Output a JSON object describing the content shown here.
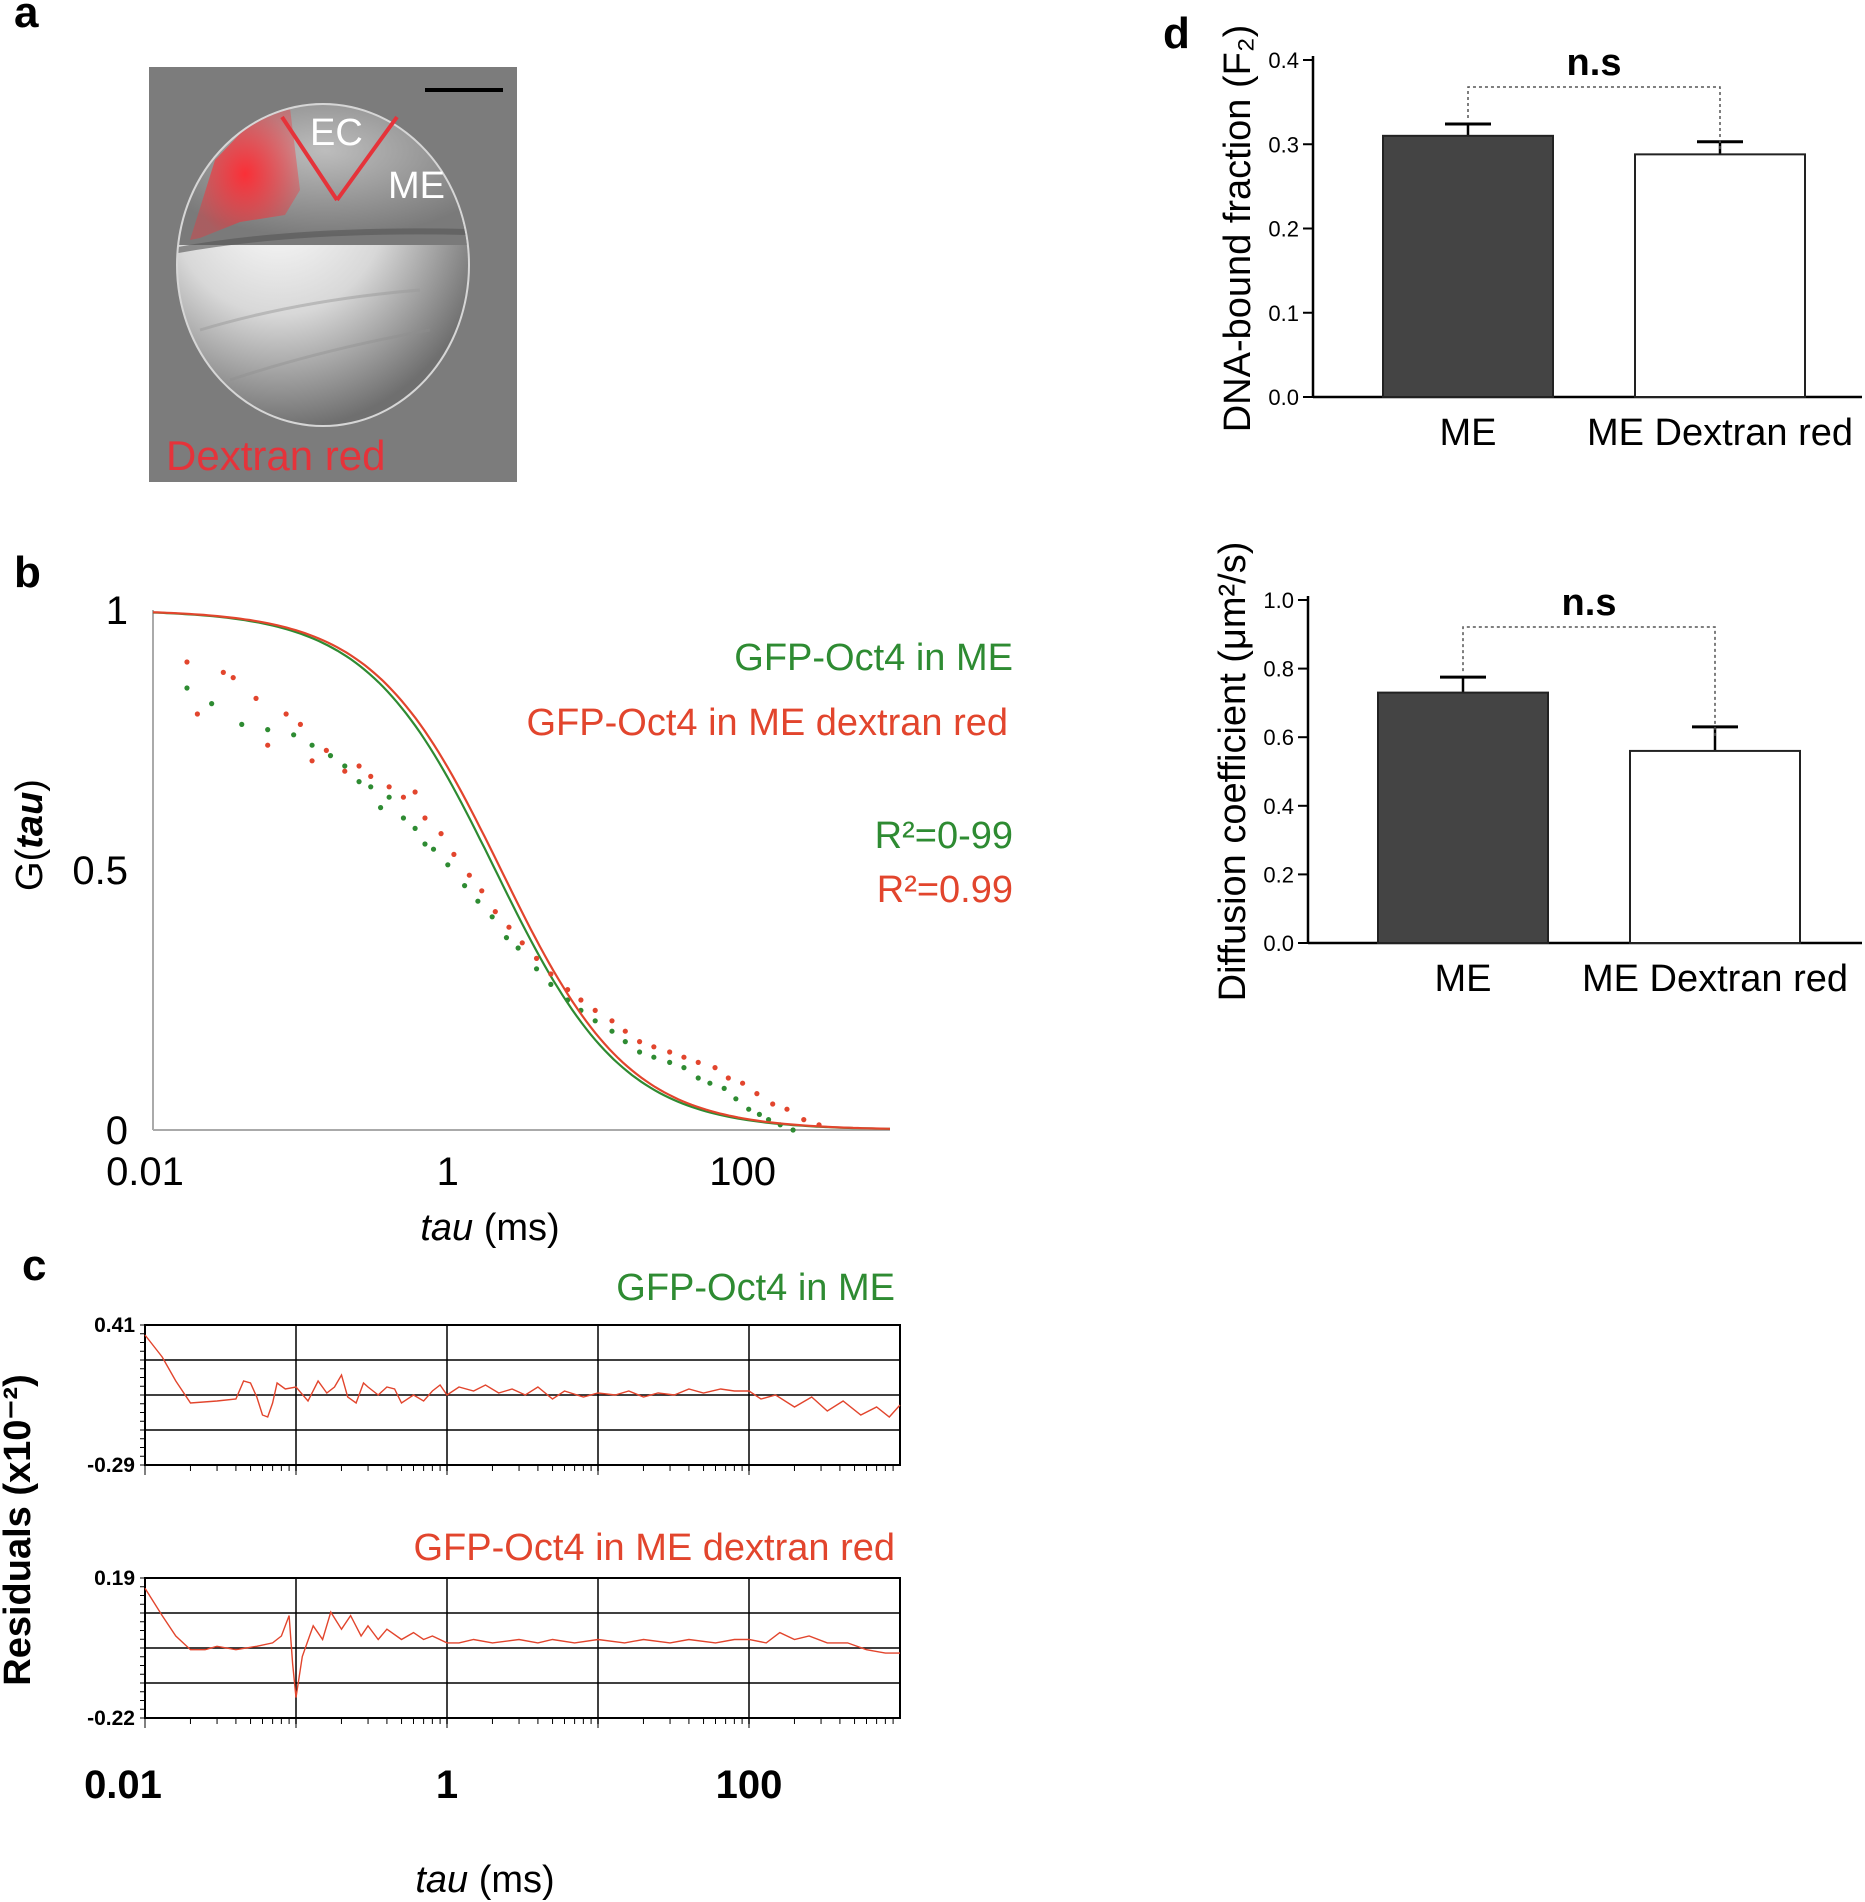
{
  "colors": {
    "green": "#2e8b32",
    "red": "#e2452d",
    "bar_dark": "#444444",
    "bar_light": "#ffffff",
    "image_red": "#e5333a"
  },
  "panel_a": {
    "letter": "a",
    "labels": {
      "ec": "EC",
      "me": "ME",
      "stain": "Dextran red"
    }
  },
  "panel_b": {
    "letter": "b",
    "legend": {
      "green_label": "GFP-Oct4 in ME",
      "red_label": "GFP-Oct4 in ME dextran red",
      "green_r2": "R²=0-99",
      "red_r2": "R²=0.99"
    }
  },
  "panel_c": {
    "letter": "c",
    "ylabel": "Residuals (x10⁻²)"
  },
  "panel_d": {
    "letter": "d"
  },
  "chart_data": [
    {
      "id": "b",
      "type": "line",
      "xlabel_italic": "tau",
      "xlabel_unit": " (ms)",
      "ylabel_prefix": "G(",
      "ylabel_italic": "tau",
      "ylabel_suffix": ")",
      "x_scale": "log",
      "xlim": [
        0.01,
        1000
      ],
      "ylim": [
        0,
        1
      ],
      "x_ticks": [
        {
          "label": "0.01",
          "value": 0.01
        },
        {
          "label": "1",
          "value": 1
        },
        {
          "label": "100",
          "value": 100
        }
      ],
      "y_ticks": [
        {
          "label": "0",
          "value": 0
        },
        {
          "label": "0.5",
          "value": 0.5
        },
        {
          "label": "1",
          "value": 1
        }
      ],
      "series": [
        {
          "name": "GFP-Oct4 in ME",
          "color": "green",
          "fit": {
            "tauD": 2.1
          },
          "points": [
            [
              0.017,
              0.85
            ],
            [
              0.025,
              0.82
            ],
            [
              0.04,
              0.78
            ],
            [
              0.06,
              0.77
            ],
            [
              0.09,
              0.76
            ],
            [
              0.12,
              0.74
            ],
            [
              0.16,
              0.72
            ],
            [
              0.2,
              0.7
            ],
            [
              0.25,
              0.67
            ],
            [
              0.3,
              0.66
            ],
            [
              0.35,
              0.62
            ],
            [
              0.4,
              0.64
            ],
            [
              0.5,
              0.6
            ],
            [
              0.6,
              0.58
            ],
            [
              0.7,
              0.55
            ],
            [
              0.8,
              0.54
            ],
            [
              1.0,
              0.51
            ],
            [
              1.3,
              0.47
            ],
            [
              1.6,
              0.44
            ],
            [
              2.0,
              0.41
            ],
            [
              2.5,
              0.37
            ],
            [
              3.0,
              0.35
            ],
            [
              4.0,
              0.31
            ],
            [
              5.0,
              0.28
            ],
            [
              6.5,
              0.25
            ],
            [
              8,
              0.23
            ],
            [
              10,
              0.21
            ],
            [
              13,
              0.19
            ],
            [
              16,
              0.17
            ],
            [
              20,
              0.15
            ],
            [
              25,
              0.14
            ],
            [
              32,
              0.13
            ],
            [
              40,
              0.12
            ],
            [
              50,
              0.1
            ],
            [
              60,
              0.09
            ],
            [
              75,
              0.08
            ],
            [
              90,
              0.06
            ],
            [
              110,
              0.04
            ],
            [
              130,
              0.03
            ],
            [
              150,
              0.02
            ],
            [
              180,
              0.01
            ],
            [
              220,
              0.0
            ]
          ]
        },
        {
          "name": "GFP-Oct4 in ME dextran red",
          "color": "red",
          "fit": {
            "tauD": 2.3
          },
          "points": [
            [
              0.017,
              0.9
            ],
            [
              0.02,
              0.8
            ],
            [
              0.03,
              0.88
            ],
            [
              0.035,
              0.87
            ],
            [
              0.05,
              0.83
            ],
            [
              0.06,
              0.74
            ],
            [
              0.08,
              0.8
            ],
            [
              0.1,
              0.78
            ],
            [
              0.12,
              0.71
            ],
            [
              0.15,
              0.73
            ],
            [
              0.2,
              0.69
            ],
            [
              0.25,
              0.7
            ],
            [
              0.3,
              0.68
            ],
            [
              0.4,
              0.66
            ],
            [
              0.5,
              0.64
            ],
            [
              0.6,
              0.65
            ],
            [
              0.7,
              0.6
            ],
            [
              0.9,
              0.57
            ],
            [
              1.1,
              0.53
            ],
            [
              1.4,
              0.49
            ],
            [
              1.7,
              0.46
            ],
            [
              2.1,
              0.42
            ],
            [
              2.6,
              0.39
            ],
            [
              3.2,
              0.36
            ],
            [
              4,
              0.33
            ],
            [
              5,
              0.3
            ],
            [
              6.5,
              0.27
            ],
            [
              8,
              0.25
            ],
            [
              10,
              0.23
            ],
            [
              13,
              0.21
            ],
            [
              16,
              0.19
            ],
            [
              20,
              0.17
            ],
            [
              25,
              0.16
            ],
            [
              32,
              0.15
            ],
            [
              40,
              0.14
            ],
            [
              50,
              0.13
            ],
            [
              65,
              0.12
            ],
            [
              80,
              0.1
            ],
            [
              100,
              0.09
            ],
            [
              125,
              0.07
            ],
            [
              160,
              0.05
            ],
            [
              200,
              0.04
            ],
            [
              260,
              0.02
            ],
            [
              330,
              0.01
            ]
          ]
        }
      ]
    },
    {
      "id": "c1",
      "type": "line",
      "title": "GFP-Oct4 in ME",
      "title_color": "green",
      "x_scale": "log",
      "xlim": [
        0.01,
        1000
      ],
      "ylim": [
        -0.29,
        0.41
      ],
      "y_ticks": [
        {
          "label": "0.41",
          "value": 0.41
        },
        {
          "label": "-0.29",
          "value": -0.29
        }
      ],
      "series": [
        {
          "color": "red",
          "points": [
            [
              0.01,
              0.36
            ],
            [
              0.013,
              0.25
            ],
            [
              0.016,
              0.13
            ],
            [
              0.02,
              0.02
            ],
            [
              0.03,
              0.03
            ],
            [
              0.04,
              0.04
            ],
            [
              0.045,
              0.13
            ],
            [
              0.05,
              0.12
            ],
            [
              0.055,
              0.05
            ],
            [
              0.06,
              -0.04
            ],
            [
              0.065,
              -0.05
            ],
            [
              0.07,
              0.02
            ],
            [
              0.075,
              0.12
            ],
            [
              0.085,
              0.09
            ],
            [
              0.1,
              0.1
            ],
            [
              0.12,
              0.03
            ],
            [
              0.14,
              0.13
            ],
            [
              0.16,
              0.07
            ],
            [
              0.18,
              0.1
            ],
            [
              0.2,
              0.16
            ],
            [
              0.22,
              0.05
            ],
            [
              0.25,
              0.02
            ],
            [
              0.28,
              0.12
            ],
            [
              0.3,
              0.1
            ],
            [
              0.35,
              0.06
            ],
            [
              0.4,
              0.1
            ],
            [
              0.45,
              0.09
            ],
            [
              0.5,
              0.02
            ],
            [
              0.6,
              0.06
            ],
            [
              0.7,
              0.03
            ],
            [
              0.8,
              0.08
            ],
            [
              0.9,
              0.11
            ],
            [
              1.0,
              0.06
            ],
            [
              1.2,
              0.1
            ],
            [
              1.5,
              0.08
            ],
            [
              1.8,
              0.11
            ],
            [
              2.2,
              0.07
            ],
            [
              2.7,
              0.09
            ],
            [
              3.3,
              0.06
            ],
            [
              4,
              0.1
            ],
            [
              5,
              0.04
            ],
            [
              6,
              0.08
            ],
            [
              8,
              0.05
            ],
            [
              10,
              0.07
            ],
            [
              13,
              0.06
            ],
            [
              16,
              0.08
            ],
            [
              20,
              0.05
            ],
            [
              25,
              0.07
            ],
            [
              32,
              0.06
            ],
            [
              40,
              0.09
            ],
            [
              50,
              0.07
            ],
            [
              65,
              0.09
            ],
            [
              80,
              0.08
            ],
            [
              100,
              0.08
            ],
            [
              120,
              0.04
            ],
            [
              150,
              0.06
            ],
            [
              200,
              0.0
            ],
            [
              260,
              0.05
            ],
            [
              330,
              -0.02
            ],
            [
              420,
              0.03
            ],
            [
              550,
              -0.04
            ],
            [
              700,
              0.0
            ],
            [
              850,
              -0.05
            ],
            [
              1000,
              0.01
            ]
          ]
        }
      ]
    },
    {
      "id": "c2",
      "type": "line",
      "title": "GFP-Oct4 in ME dextran red",
      "title_color": "red",
      "xlabel_italic": "tau",
      "xlabel_unit": " (ms)",
      "x_scale": "log",
      "xlim": [
        0.01,
        1000
      ],
      "ylim": [
        -0.22,
        0.19
      ],
      "x_ticks": [
        {
          "label": "0.01",
          "value": 0.01
        },
        {
          "label": "1",
          "value": 1
        },
        {
          "label": "100",
          "value": 100
        }
      ],
      "y_ticks": [
        {
          "label": "0.19",
          "value": 0.19
        },
        {
          "label": "-0.22",
          "value": -0.22
        }
      ],
      "series": [
        {
          "color": "red",
          "points": [
            [
              0.01,
              0.16
            ],
            [
              0.013,
              0.08
            ],
            [
              0.016,
              0.02
            ],
            [
              0.02,
              -0.02
            ],
            [
              0.025,
              -0.02
            ],
            [
              0.03,
              -0.01
            ],
            [
              0.04,
              -0.02
            ],
            [
              0.055,
              -0.01
            ],
            [
              0.07,
              0.0
            ],
            [
              0.08,
              0.02
            ],
            [
              0.09,
              0.08
            ],
            [
              0.095,
              -0.06
            ],
            [
              0.1,
              -0.16
            ],
            [
              0.11,
              -0.04
            ],
            [
              0.13,
              0.05
            ],
            [
              0.15,
              0.01
            ],
            [
              0.17,
              0.09
            ],
            [
              0.2,
              0.04
            ],
            [
              0.23,
              0.08
            ],
            [
              0.27,
              0.02
            ],
            [
              0.3,
              0.05
            ],
            [
              0.35,
              0.01
            ],
            [
              0.4,
              0.04
            ],
            [
              0.5,
              0.01
            ],
            [
              0.6,
              0.03
            ],
            [
              0.7,
              0.01
            ],
            [
              0.8,
              0.02
            ],
            [
              1.0,
              0.0
            ],
            [
              1.2,
              0.0
            ],
            [
              1.5,
              0.01
            ],
            [
              2,
              0.0
            ],
            [
              3,
              0.01
            ],
            [
              4,
              0.0
            ],
            [
              5,
              0.01
            ],
            [
              7,
              0.0
            ],
            [
              10,
              0.01
            ],
            [
              15,
              0.0
            ],
            [
              20,
              0.01
            ],
            [
              30,
              0.0
            ],
            [
              40,
              0.01
            ],
            [
              60,
              0.0
            ],
            [
              80,
              0.01
            ],
            [
              100,
              0.01
            ],
            [
              130,
              0.0
            ],
            [
              160,
              0.03
            ],
            [
              200,
              0.01
            ],
            [
              250,
              0.02
            ],
            [
              330,
              0.0
            ],
            [
              450,
              0.0
            ],
            [
              600,
              -0.02
            ],
            [
              800,
              -0.03
            ],
            [
              1000,
              -0.03
            ]
          ]
        }
      ]
    },
    {
      "id": "d1",
      "type": "bar",
      "ylabel": "DNA-bound fraction (F₂)",
      "ylim": [
        0,
        0.4
      ],
      "y_ticks": [
        "0.0",
        "0.1",
        "0.2",
        "0.3",
        "0.4"
      ],
      "categories": [
        "ME",
        "ME Dextran red"
      ],
      "values": [
        0.31,
        0.288
      ],
      "errors": [
        0.014,
        0.015
      ],
      "bar_colors": [
        "bar_dark",
        "bar_light"
      ],
      "significance": "n.s"
    },
    {
      "id": "d2",
      "type": "bar",
      "ylabel": "Diffusion coefficient (μm²/s)",
      "ylim": [
        0,
        1.0
      ],
      "y_ticks": [
        "0.0",
        "0.2",
        "0.4",
        "0.6",
        "0.8",
        "1.0"
      ],
      "categories": [
        "ME",
        "ME Dextran red"
      ],
      "values": [
        0.73,
        0.56
      ],
      "errors": [
        0.045,
        0.07
      ],
      "bar_colors": [
        "bar_dark",
        "bar_light"
      ],
      "significance": "n.s"
    }
  ]
}
